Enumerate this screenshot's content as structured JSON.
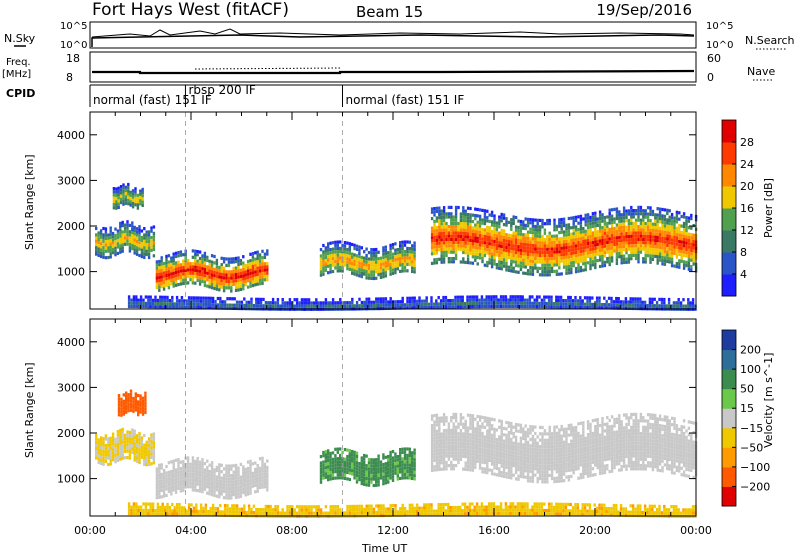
{
  "header": {
    "station": "Fort Hays West (fitACF)",
    "beam": "Beam 15",
    "date": "19/Sep/2016"
  },
  "left_labels": {
    "nsky": "N.Sky",
    "freq_line1": "Freq.",
    "freq_line2": "[MHz]",
    "cpid": "CPID"
  },
  "right_labels": {
    "nsearch": "N.Search",
    "nave": "Nave"
  },
  "noise_panel": {
    "left_ticks": [
      "10^5",
      "10^0"
    ],
    "right_ticks": [
      "10^5",
      "10^0"
    ]
  },
  "freq_panel": {
    "left_ticks": [
      "18",
      "8"
    ],
    "right_ticks": [
      "60",
      "0"
    ]
  },
  "cpid_panel": {
    "segments": [
      {
        "label": "normal (fast) 151 IF",
        "start_hour": 0.0
      },
      {
        "label": "rbsp 200 IF",
        "start_hour": 3.78
      },
      {
        "label": "normal (fast) 151 IF",
        "start_hour": 10.0
      }
    ]
  },
  "chart_data": [
    {
      "type": "heatmap",
      "name": "power",
      "xlabel": "",
      "ylabel": "Slant Range [km]",
      "xlim": [
        0,
        24
      ],
      "ylim": [
        180,
        4500
      ],
      "yticks": [
        "1000",
        "2000",
        "3000",
        "4000"
      ],
      "colorbar": {
        "label": "Power [dB]",
        "ticks": [
          "4",
          "8",
          "12",
          "16",
          "20",
          "24",
          "28"
        ],
        "colors": [
          "#1e1eff",
          "#2a55c8",
          "#3a7a64",
          "#50a050",
          "#f0c800",
          "#ff8800",
          "#ff3a00",
          "#e00000"
        ]
      },
      "echo_regions": [
        {
          "t_start": 0.2,
          "t_end": 2.5,
          "range_low": 1400,
          "range_high": 2050,
          "peak_db": 20
        },
        {
          "t_start": 0.9,
          "t_end": 2.1,
          "range_low": 2450,
          "range_high": 2900,
          "peak_db": 18
        },
        {
          "t_start": 2.6,
          "t_end": 7.0,
          "range_low": 650,
          "range_high": 1400,
          "peak_db": 30
        },
        {
          "t_start": 9.1,
          "t_end": 12.9,
          "range_low": 900,
          "range_high": 1600,
          "peak_db": 22
        },
        {
          "t_start": 13.5,
          "t_end": 24.0,
          "range_low": 1100,
          "range_high": 2300,
          "peak_db": 28
        },
        {
          "t_start": 1.5,
          "t_end": 24.0,
          "range_low": 180,
          "range_high": 450,
          "peak_db": 8
        }
      ]
    },
    {
      "type": "heatmap",
      "name": "velocity",
      "xlabel": "Time UT",
      "ylabel": "Slant Range [km]",
      "xlim": [
        0,
        24
      ],
      "ylim": [
        180,
        4500
      ],
      "yticks": [
        "1000",
        "2000",
        "3000",
        "4000"
      ],
      "xticks": [
        "00:00",
        "04:00",
        "08:00",
        "12:00",
        "16:00",
        "20:00",
        "00:00"
      ],
      "colorbar": {
        "label": "Velocity [m s^-1]",
        "ticks": [
          "200",
          "100",
          "50",
          "15",
          "−15",
          "−50",
          "−100",
          "−200"
        ],
        "colors": [
          "#1e3ca0",
          "#2e6e9a",
          "#3c8c50",
          "#6cc84a",
          "#c8c8c8",
          "#f0c800",
          "#ff9a00",
          "#ff5a00",
          "#e00000"
        ]
      },
      "echo_regions": [
        {
          "t_start": 0.2,
          "t_end": 2.5,
          "range_low": 1400,
          "range_high": 2050,
          "velocity": -20
        },
        {
          "t_start": 1.1,
          "t_end": 2.2,
          "range_low": 2450,
          "range_high": 2900,
          "velocity": -150
        },
        {
          "t_start": 2.6,
          "t_end": 7.0,
          "range_low": 650,
          "range_high": 1400,
          "velocity": 0
        },
        {
          "t_start": 9.1,
          "t_end": 12.9,
          "range_low": 900,
          "range_high": 1600,
          "velocity": 60
        },
        {
          "t_start": 13.5,
          "t_end": 24.0,
          "range_low": 1100,
          "range_high": 2300,
          "velocity": 0
        },
        {
          "t_start": 1.5,
          "t_end": 24.0,
          "range_low": 180,
          "range_high": 450,
          "velocity": -40
        }
      ]
    }
  ]
}
